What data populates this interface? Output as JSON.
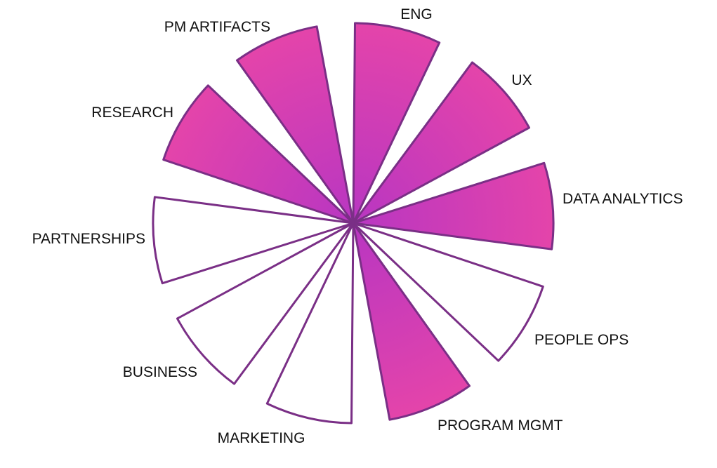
{
  "diagram": {
    "type": "radial-segment-wheel",
    "fill_gradient": {
      "inner": "#b836c2",
      "outer": "#e444aa"
    },
    "stroke_color": "#7a2f86",
    "empty_fill": "#ffffff",
    "segments": [
      {
        "label": "ENG",
        "filled": true
      },
      {
        "label": "UX",
        "filled": true
      },
      {
        "label": "DATA ANALYTICS",
        "filled": true
      },
      {
        "label": "PEOPLE OPS",
        "filled": false
      },
      {
        "label": "PROGRAM MGMT",
        "filled": true
      },
      {
        "label": "MARKETING",
        "filled": false
      },
      {
        "label": "BUSINESS",
        "filled": false
      },
      {
        "label": "PARTNERSHIPS",
        "filled": false
      },
      {
        "label": "RESEARCH",
        "filled": true
      },
      {
        "label": "PM ARTIFACTS",
        "filled": true
      }
    ]
  }
}
